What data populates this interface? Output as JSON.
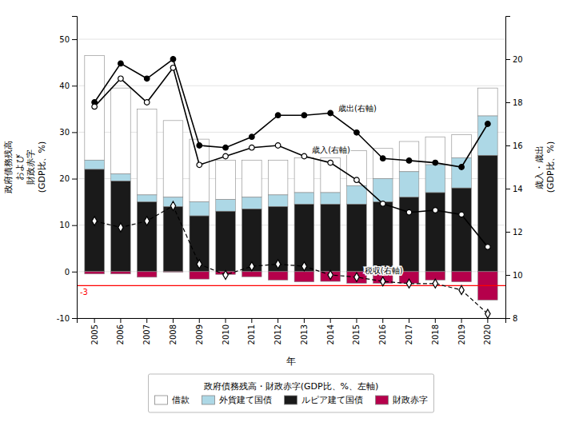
{
  "chart_data": {
    "type": "bar",
    "stacked": true,
    "categories": [
      "2005",
      "2006",
      "2007",
      "2008",
      "2009",
      "2010",
      "2011",
      "2012",
      "2013",
      "2014",
      "2015",
      "2016",
      "2017",
      "2018",
      "2019",
      "2020"
    ],
    "x_label": "年",
    "y_label": "政府債務残高\nおよび\n財政赤字\n(GDP比、%)",
    "y2_label": "歳入・歳出\n(GDP比、%)",
    "ylim": [
      -10,
      55
    ],
    "yticks": [
      -10,
      0,
      10,
      20,
      30,
      40,
      50
    ],
    "y2lim": [
      8,
      22
    ],
    "y2ticks": [
      8,
      10,
      12,
      14,
      16,
      18,
      20
    ],
    "grid": true,
    "legend": "bottom",
    "legend_title": "政府債務残高・財政赤字(GDP比、%、左軸)",
    "series": [
      {
        "name": "借款",
        "color": "#ffffff",
        "values": [
          22.5,
          18.5,
          18.5,
          16.5,
          13.5,
          8.5,
          8.0,
          7.5,
          7.5,
          7.5,
          7.5,
          6.5,
          6.5,
          6.0,
          5.0,
          6.0
        ]
      },
      {
        "name": "外貨建て国債",
        "color": "#add8e6",
        "values": [
          2.0,
          1.5,
          1.5,
          2.0,
          3.0,
          2.5,
          2.5,
          2.5,
          2.5,
          2.5,
          4.0,
          5.0,
          5.5,
          6.0,
          6.5,
          8.5
        ]
      },
      {
        "name": "ルピア建て国債",
        "color": "#1a1a1a",
        "values": [
          22.0,
          19.5,
          15.0,
          14.0,
          12.0,
          13.0,
          13.5,
          14.0,
          14.5,
          14.5,
          14.5,
          15.0,
          16.0,
          17.0,
          18.0,
          25.0
        ]
      },
      {
        "name": "財政赤字",
        "color": "#b5004b",
        "values": [
          -0.5,
          -0.5,
          -1.2,
          -0.1,
          -1.6,
          -0.6,
          -1.1,
          -1.8,
          -2.2,
          -2.1,
          -2.5,
          -2.5,
          -2.5,
          -1.8,
          -2.2,
          -6.1
        ]
      },
      {
        "type": "line",
        "axis": "y2",
        "color": "#000000",
        "marker": "circle",
        "line_style": "solid",
        "values": [
          18.0,
          19.8,
          19.1,
          20.0,
          16.0,
          15.9,
          16.4,
          17.4,
          17.4,
          17.5,
          16.6,
          15.4,
          15.3,
          15.2,
          15.0,
          17.0
        ]
      },
      {
        "type": "line",
        "axis": "y2",
        "color": "#000000",
        "marker": "circle-open",
        "line_style": "solid",
        "values": [
          17.8,
          19.1,
          18.0,
          19.6,
          15.1,
          15.5,
          15.9,
          16.0,
          15.5,
          15.2,
          14.4,
          13.3,
          12.9,
          13.0,
          12.8,
          11.3
        ]
      },
      {
        "type": "line",
        "axis": "y2",
        "color": "#000000",
        "marker": "diamond-open",
        "line_style": "dashed",
        "values": [
          12.5,
          12.2,
          12.5,
          13.2,
          10.5,
          10.0,
          10.4,
          10.5,
          10.4,
          10.0,
          9.9,
          9.7,
          9.6,
          9.6,
          9.3,
          8.2
        ]
      }
    ],
    "reference_lines": [
      {
        "y": -3,
        "label": "-3",
        "color": "#ff0000"
      }
    ],
    "annotations": [
      {
        "text": "歳出(右軸)",
        "x": "2014",
        "y": 17.4,
        "axis": "y2"
      },
      {
        "text": "歳入(右軸)",
        "x": "2013",
        "y": 15.5,
        "axis": "y2"
      },
      {
        "text": "税収(右軸)",
        "x": "2015",
        "y": 9.9,
        "axis": "y2"
      }
    ]
  }
}
